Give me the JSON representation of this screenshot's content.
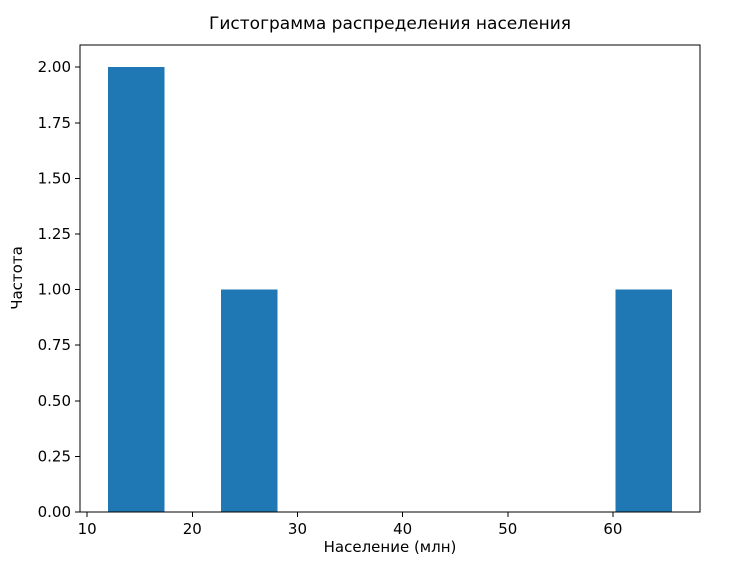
{
  "chart_data": {
    "type": "bar",
    "subtype": "histogram",
    "title": "Гистограмма распределения населения",
    "xlabel": "Население (млн)",
    "ylabel": "Частота",
    "bar_color": "#1f77b4",
    "background_color": "#ffffff",
    "grid": false,
    "legend": "none",
    "xlim": [
      9.32,
      68.28
    ],
    "ylim": [
      0,
      2.1
    ],
    "x_ticks": [
      10,
      20,
      30,
      40,
      50,
      60
    ],
    "y_ticks": [
      "0.00",
      "0.25",
      "0.50",
      "0.75",
      "1.00",
      "1.25",
      "1.50",
      "1.75",
      "2.00"
    ],
    "bin_width": 5.36,
    "bins": [
      {
        "start": 12.0,
        "end": 17.36,
        "count": 2
      },
      {
        "start": 22.72,
        "end": 28.08,
        "count": 1
      },
      {
        "start": 60.24,
        "end": 65.6,
        "count": 1
      }
    ]
  }
}
